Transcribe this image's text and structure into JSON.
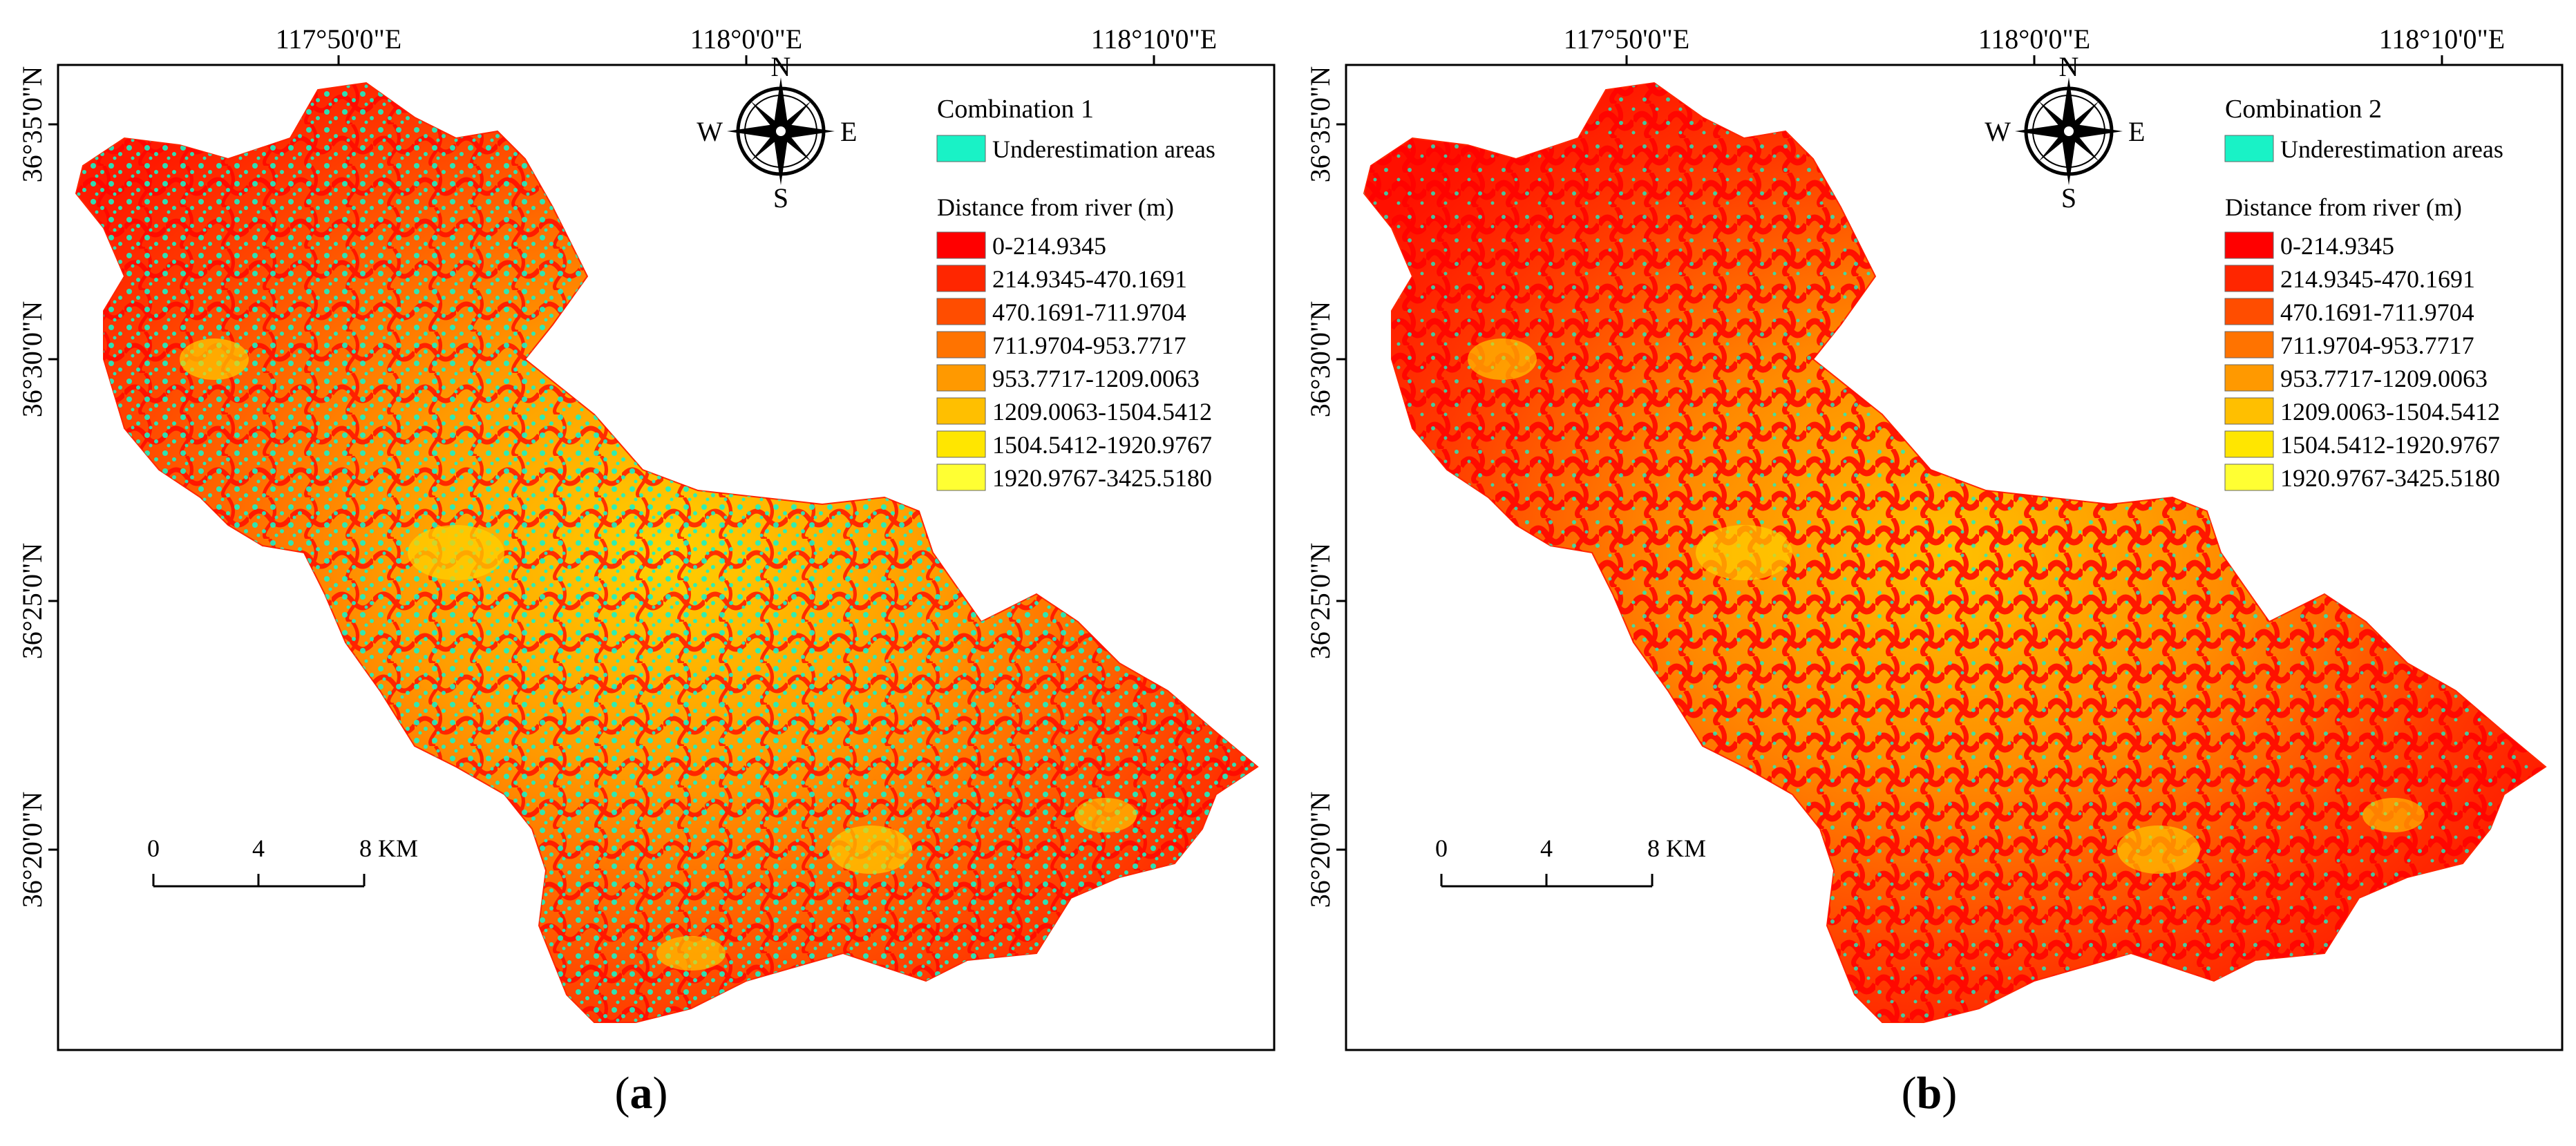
{
  "panels": [
    {
      "caption_letter": "a",
      "legend_title": "Combination 1",
      "underestimation_label": "Underestimation areas"
    },
    {
      "caption_letter": "b",
      "legend_title": "Combination 2",
      "underestimation_label": "Underestimation areas"
    }
  ],
  "legend": {
    "distance_title": "Distance from river (m)",
    "classes": [
      {
        "label": "0-214.9345",
        "color": "#ff0000"
      },
      {
        "label": "214.9345-470.1691",
        "color": "#ff2600"
      },
      {
        "label": "470.1691-711.9704",
        "color": "#ff4d00"
      },
      {
        "label": "711.9704-953.7717",
        "color": "#ff7300"
      },
      {
        "label": "953.7717-1209.0063",
        "color": "#ff9900"
      },
      {
        "label": "1209.0063-1504.5412",
        "color": "#ffbf00"
      },
      {
        "label": "1504.5412-1920.9767",
        "color": "#ffe600"
      },
      {
        "label": "1920.9767-3425.5180",
        "color": "#ffff33"
      }
    ],
    "underestimation_color": "#19f2c6"
  },
  "axes": {
    "longitude_labels": [
      "117°50'0\"E",
      "118°0'0\"E",
      "118°10'0\"E"
    ],
    "latitude_labels": [
      "36°35'0\"N",
      "36°30'0\"N",
      "36°25'0\"N",
      "36°20'0\"N"
    ]
  },
  "compass": {
    "n": "N",
    "s": "S",
    "e": "E",
    "w": "W"
  },
  "scale_bar": {
    "ticks": [
      "0",
      "4",
      "8 KM"
    ]
  }
}
